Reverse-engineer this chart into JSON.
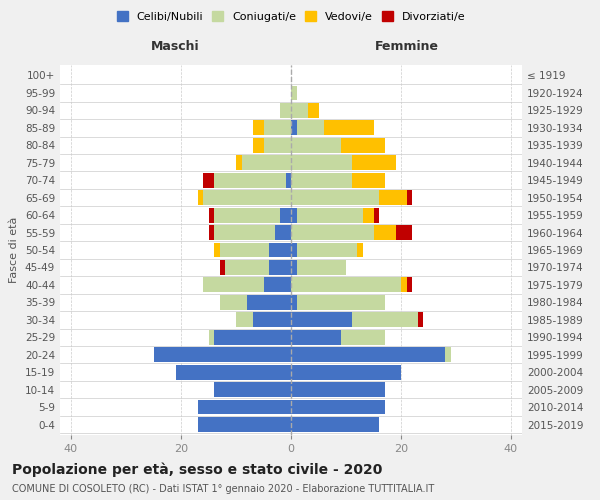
{
  "age_groups": [
    "0-4",
    "5-9",
    "10-14",
    "15-19",
    "20-24",
    "25-29",
    "30-34",
    "35-39",
    "40-44",
    "45-49",
    "50-54",
    "55-59",
    "60-64",
    "65-69",
    "70-74",
    "75-79",
    "80-84",
    "85-89",
    "90-94",
    "95-99",
    "100+"
  ],
  "birth_years": [
    "2015-2019",
    "2010-2014",
    "2005-2009",
    "2000-2004",
    "1995-1999",
    "1990-1994",
    "1985-1989",
    "1980-1984",
    "1975-1979",
    "1970-1974",
    "1965-1969",
    "1960-1964",
    "1955-1959",
    "1950-1954",
    "1945-1949",
    "1940-1944",
    "1935-1939",
    "1930-1934",
    "1925-1929",
    "1920-1924",
    "≤ 1919"
  ],
  "male": {
    "celibe": [
      17,
      17,
      14,
      21,
      25,
      14,
      7,
      8,
      5,
      4,
      4,
      3,
      2,
      0,
      1,
      0,
      0,
      0,
      0,
      0,
      0
    ],
    "coniugato": [
      0,
      0,
      0,
      0,
      0,
      1,
      3,
      5,
      11,
      8,
      9,
      11,
      12,
      16,
      13,
      9,
      5,
      5,
      2,
      0,
      0
    ],
    "vedovo": [
      0,
      0,
      0,
      0,
      0,
      0,
      0,
      0,
      0,
      0,
      1,
      0,
      0,
      1,
      0,
      1,
      2,
      2,
      0,
      0,
      0
    ],
    "divorziato": [
      0,
      0,
      0,
      0,
      0,
      0,
      0,
      0,
      0,
      1,
      0,
      1,
      1,
      0,
      2,
      0,
      0,
      0,
      0,
      0,
      0
    ]
  },
  "female": {
    "nubile": [
      16,
      17,
      17,
      20,
      28,
      9,
      11,
      1,
      0,
      1,
      1,
      0,
      1,
      0,
      0,
      0,
      0,
      1,
      0,
      0,
      0
    ],
    "coniugata": [
      0,
      0,
      0,
      0,
      1,
      8,
      12,
      16,
      20,
      9,
      11,
      15,
      12,
      16,
      11,
      11,
      9,
      5,
      3,
      1,
      0
    ],
    "vedova": [
      0,
      0,
      0,
      0,
      0,
      0,
      0,
      0,
      1,
      0,
      1,
      4,
      2,
      5,
      6,
      8,
      8,
      9,
      2,
      0,
      0
    ],
    "divorziata": [
      0,
      0,
      0,
      0,
      0,
      0,
      1,
      0,
      1,
      0,
      0,
      3,
      1,
      1,
      0,
      0,
      0,
      0,
      0,
      0,
      0
    ]
  },
  "colors": {
    "celibe_nubile": "#4472c4",
    "coniugato_a": "#c5d9a0",
    "vedovo_a": "#ffc000",
    "divorziato_a": "#c00000"
  },
  "xlim": [
    -42,
    42
  ],
  "xticks": [
    -40,
    -20,
    0,
    20,
    40
  ],
  "xticklabels": [
    "40",
    "20",
    "0",
    "20",
    "40"
  ],
  "title_main": "Popolazione per età, sesso e stato civile - 2020",
  "title_sub": "COMUNE DI COSOLETO (RC) - Dati ISTAT 1° gennaio 2020 - Elaborazione TUTTITALIA.IT",
  "ylabel_left": "Fasce di età",
  "label_maschi": "Maschi",
  "label_femmine": "Femmine",
  "legend_labels": [
    "Celibi/Nubili",
    "Coniugati/e",
    "Vedovi/e",
    "Divorziati/e"
  ],
  "background_color": "#f0f0f0",
  "plot_bg_color": "#ffffff"
}
